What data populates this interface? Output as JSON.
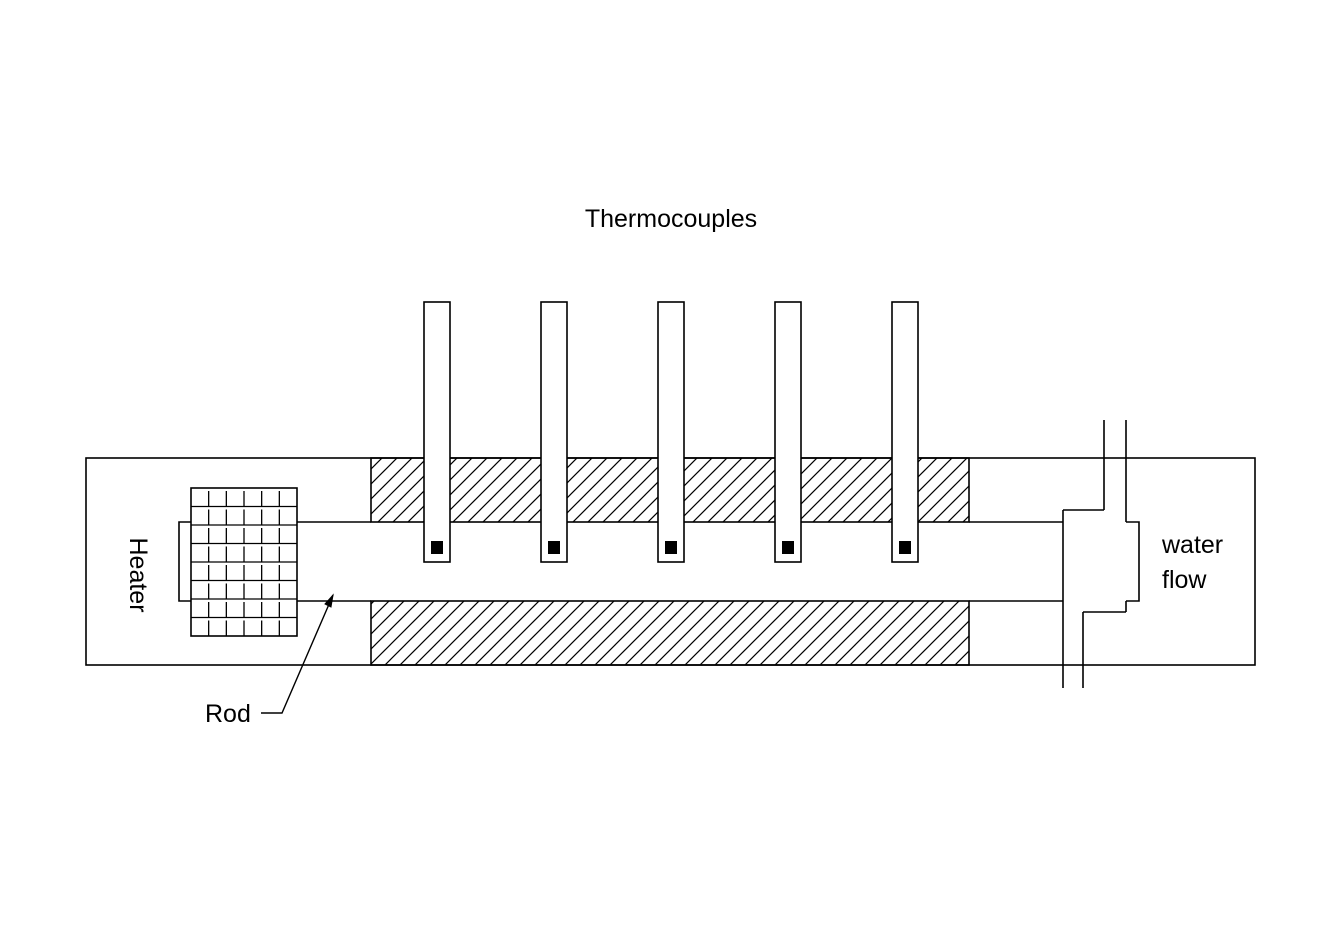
{
  "labels": {
    "thermocouples": "Thermocouples",
    "heater": "Heater",
    "rod": "Rod",
    "water_line1": "water",
    "water_line2": "flow"
  },
  "thermocouple_count": 5,
  "colors": {
    "stroke": "#000000",
    "background": "#ffffff"
  },
  "icons": {
    "heater": "heater-grid-icon",
    "insulation": "hatched-insulation",
    "sensor": "sensor-tip-square"
  }
}
